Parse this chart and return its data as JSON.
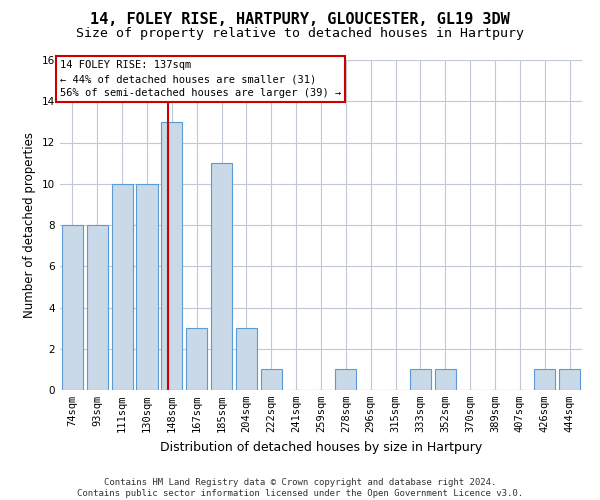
{
  "title1": "14, FOLEY RISE, HARTPURY, GLOUCESTER, GL19 3DW",
  "title2": "Size of property relative to detached houses in Hartpury",
  "xlabel": "Distribution of detached houses by size in Hartpury",
  "ylabel": "Number of detached properties",
  "categories": [
    "74sqm",
    "93sqm",
    "111sqm",
    "130sqm",
    "148sqm",
    "167sqm",
    "185sqm",
    "204sqm",
    "222sqm",
    "241sqm",
    "259sqm",
    "278sqm",
    "296sqm",
    "315sqm",
    "333sqm",
    "352sqm",
    "370sqm",
    "389sqm",
    "407sqm",
    "426sqm",
    "444sqm"
  ],
  "values": [
    8,
    8,
    10,
    10,
    13,
    3,
    11,
    3,
    1,
    0,
    0,
    1,
    0,
    0,
    1,
    1,
    0,
    0,
    0,
    1,
    1
  ],
  "bar_color": "#c9d9e8",
  "bar_edge_color": "#5b9bd5",
  "vline_x": 3.85,
  "vline_color": "#cc0000",
  "annotation_line1": "14 FOLEY RISE: 137sqm",
  "annotation_line2": "← 44% of detached houses are smaller (31)",
  "annotation_line3": "56% of semi-detached houses are larger (39) →",
  "box_edge_color": "#cc0000",
  "ylim": [
    0,
    16
  ],
  "yticks": [
    0,
    2,
    4,
    6,
    8,
    10,
    12,
    14,
    16
  ],
  "footnote": "Contains HM Land Registry data © Crown copyright and database right 2024.\nContains public sector information licensed under the Open Government Licence v3.0.",
  "bg_color": "#ffffff",
  "grid_color": "#c0c8d8",
  "title1_fontsize": 11,
  "title2_fontsize": 9.5,
  "xlabel_fontsize": 9,
  "ylabel_fontsize": 8.5,
  "tick_fontsize": 7.5,
  "annotation_fontsize": 7.5,
  "footnote_fontsize": 6.5
}
